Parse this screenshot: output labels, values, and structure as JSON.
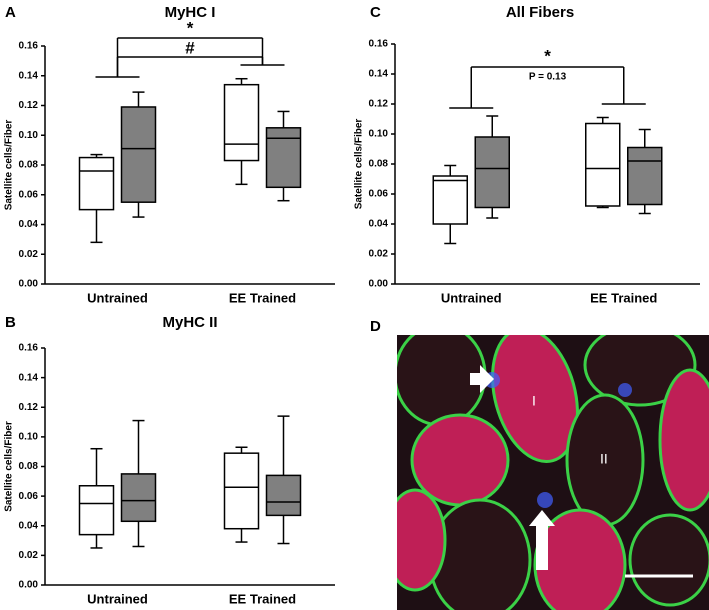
{
  "chart_data": [
    {
      "type": "box",
      "panel": "A",
      "title": "MyHC I",
      "ylabel": "Satellite cells/Fiber",
      "categories": [
        "Untrained",
        "EE Trained"
      ],
      "ylim": [
        0,
        0.16
      ],
      "yticks": [
        {
          "value": 0,
          "label": "0.00"
        },
        {
          "value": 0.02,
          "label": "0.02"
        },
        {
          "value": 0.04,
          "label": "0.04"
        },
        {
          "value": 0.06,
          "label": "0.06"
        },
        {
          "value": 0.08,
          "label": "0.08"
        },
        {
          "value": 0.1,
          "label": "0.10"
        },
        {
          "value": 0.12,
          "label": "0.12"
        },
        {
          "value": 0.14,
          "label": "0.14"
        },
        {
          "value": 0.16,
          "label": "0.16"
        }
      ],
      "series": [
        {
          "color": "#ffffff",
          "min": [
            0.028,
            0.067
          ],
          "q1": [
            0.05,
            0.083
          ],
          "median": [
            0.076,
            0.094
          ],
          "q3": [
            0.085,
            0.134
          ],
          "max": [
            0.087,
            0.138
          ]
        },
        {
          "color": "#808080",
          "min": [
            0.045,
            0.056
          ],
          "q1": [
            0.055,
            0.065
          ],
          "median": [
            0.091,
            0.098
          ],
          "q3": [
            0.119,
            0.105
          ],
          "max": [
            0.129,
            0.116
          ]
        }
      ],
      "annotations": [
        "*",
        "#"
      ]
    },
    {
      "type": "box",
      "panel": "B",
      "title": "MyHC  II",
      "ylabel": "Satellite cells/Fiber",
      "categories": [
        "Untrained",
        "EE Trained"
      ],
      "ylim": [
        0,
        0.16
      ],
      "yticks": [
        {
          "value": 0,
          "label": "0.00"
        },
        {
          "value": 0.02,
          "label": "0.02"
        },
        {
          "value": 0.04,
          "label": "0.04"
        },
        {
          "value": 0.06,
          "label": "0.06"
        },
        {
          "value": 0.08,
          "label": "0.08"
        },
        {
          "value": 0.1,
          "label": "0.10"
        },
        {
          "value": 0.12,
          "label": "0.12"
        },
        {
          "value": 0.14,
          "label": "0.14"
        },
        {
          "value": 0.16,
          "label": "0.16"
        }
      ],
      "series": [
        {
          "color": "#ffffff",
          "min": [
            0.025,
            0.029
          ],
          "q1": [
            0.034,
            0.038
          ],
          "median": [
            0.055,
            0.066
          ],
          "q3": [
            0.067,
            0.089
          ],
          "max": [
            0.092,
            0.093
          ]
        },
        {
          "color": "#808080",
          "min": [
            0.026,
            0.028
          ],
          "q1": [
            0.043,
            0.047
          ],
          "median": [
            0.057,
            0.056
          ],
          "q3": [
            0.075,
            0.074
          ],
          "max": [
            0.111,
            0.114
          ]
        }
      ],
      "annotations": []
    },
    {
      "type": "box",
      "panel": "C",
      "title": "All Fibers",
      "ylabel": "Satellite cells/Fiber",
      "categories": [
        "Untrained",
        "EE Trained"
      ],
      "ylim": [
        0,
        0.16
      ],
      "yticks": [
        {
          "value": 0,
          "label": "0.00"
        },
        {
          "value": 0.02,
          "label": "0.02"
        },
        {
          "value": 0.04,
          "label": "0.04"
        },
        {
          "value": 0.06,
          "label": "0.06"
        },
        {
          "value": 0.08,
          "label": "0.08"
        },
        {
          "value": 0.1,
          "label": "0.10"
        },
        {
          "value": 0.12,
          "label": "0.12"
        },
        {
          "value": 0.14,
          "label": "0.14"
        },
        {
          "value": 0.16,
          "label": "0.16"
        }
      ],
      "series": [
        {
          "color": "#ffffff",
          "min": [
            0.027,
            0.051
          ],
          "q1": [
            0.04,
            0.052
          ],
          "median": [
            0.069,
            0.077
          ],
          "q3": [
            0.072,
            0.107
          ],
          "max": [
            0.079,
            0.111
          ]
        },
        {
          "color": "#808080",
          "min": [
            0.044,
            0.047
          ],
          "q1": [
            0.051,
            0.053
          ],
          "median": [
            0.077,
            0.082
          ],
          "q3": [
            0.098,
            0.091
          ],
          "max": [
            0.112,
            0.103
          ]
        }
      ],
      "annotations": [
        "*",
        "P = 0.13"
      ]
    }
  ],
  "image_panel": {
    "panel": "D",
    "labels": [
      "I",
      "II"
    ]
  }
}
